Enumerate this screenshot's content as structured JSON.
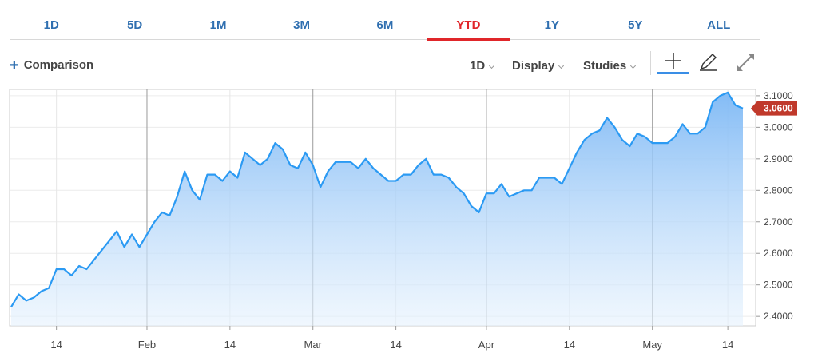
{
  "range_tabs": [
    {
      "label": "1D"
    },
    {
      "label": "5D"
    },
    {
      "label": "1M"
    },
    {
      "label": "3M"
    },
    {
      "label": "6M"
    },
    {
      "label": "YTD"
    },
    {
      "label": "1Y"
    },
    {
      "label": "5Y"
    },
    {
      "label": "ALL"
    }
  ],
  "active_range": "YTD",
  "toolbar": {
    "comparison_label": "Comparison",
    "interval_label": "1D",
    "display_label": "Display",
    "studies_label": "Studies",
    "tools": [
      "crosshair-icon",
      "pencil-icon",
      "expand-icon"
    ]
  },
  "colors": {
    "line": "#2b9af3",
    "active_tab": "#e0262a",
    "tab": "#2f6fb0",
    "last_price_tag": "#c0392b"
  },
  "chart_data": {
    "type": "area",
    "x_tick_labels": [
      "14",
      "Feb",
      "14",
      "Mar",
      "14",
      "Apr",
      "14",
      "May",
      "14"
    ],
    "ylim": [
      2.37,
      3.12
    ],
    "y_ticks": [
      2.4,
      2.5,
      2.6,
      2.7,
      2.8,
      2.9,
      3.0,
      3.1
    ],
    "y_tick_labels": [
      "2.4000",
      "2.5000",
      "2.6000",
      "2.7000",
      "2.8000",
      "2.9000",
      "3.0000",
      "3.1000"
    ],
    "last_value_label": "3.0600",
    "last_value": 3.06,
    "grid": true,
    "values": [
      2.43,
      2.47,
      2.45,
      2.46,
      2.48,
      2.49,
      2.55,
      2.55,
      2.53,
      2.56,
      2.55,
      2.58,
      2.61,
      2.64,
      2.67,
      2.62,
      2.66,
      2.62,
      2.66,
      2.7,
      2.73,
      2.72,
      2.78,
      2.86,
      2.8,
      2.77,
      2.85,
      2.85,
      2.83,
      2.86,
      2.84,
      2.92,
      2.9,
      2.88,
      2.9,
      2.95,
      2.93,
      2.88,
      2.87,
      2.92,
      2.88,
      2.81,
      2.86,
      2.89,
      2.89,
      2.89,
      2.87,
      2.9,
      2.87,
      2.85,
      2.83,
      2.83,
      2.85,
      2.85,
      2.88,
      2.9,
      2.85,
      2.85,
      2.84,
      2.81,
      2.79,
      2.75,
      2.73,
      2.79,
      2.79,
      2.82,
      2.78,
      2.79,
      2.8,
      2.8,
      2.84,
      2.84,
      2.84,
      2.82,
      2.87,
      2.92,
      2.96,
      2.98,
      2.99,
      3.03,
      3.0,
      2.96,
      2.94,
      2.98,
      2.97,
      2.95,
      2.95,
      2.95,
      2.97,
      3.01,
      2.98,
      2.98,
      3.0,
      3.08,
      3.1,
      3.11,
      3.07,
      3.06
    ]
  }
}
